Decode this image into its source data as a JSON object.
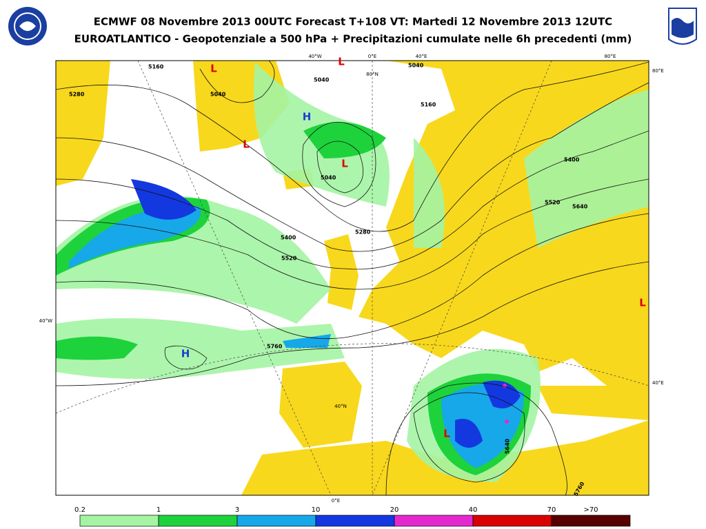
{
  "header": {
    "title_line1": "ECMWF 08 Novembre 2013 00UTC Forecast T+108 VT: Martedi 12 Novembre 2013 12UTC",
    "title_line2": "EUROATLANTICO - Geopotenziale a 500 hPa + Precipitazioni cumulate nelle 6h precedenti (mm)"
  },
  "map": {
    "graticule_labels": [
      "40°W",
      "0°E",
      "40°E",
      "80°E",
      "80°N",
      "80°E",
      "40°W",
      "40°E",
      "40°N",
      "0°E"
    ],
    "contour_labels": [
      "5280",
      "5160",
      "5040",
      "5040",
      "5040",
      "5160",
      "5040",
      "5280",
      "5400",
      "5520",
      "5400",
      "5520",
      "5640",
      "5760",
      "5640",
      "5760"
    ],
    "pressure_centers": [
      "L",
      "L",
      "L",
      "L",
      "L",
      "L",
      "H",
      "H"
    ]
  },
  "colorbar": {
    "labels": [
      "0.2",
      "1",
      "3",
      "10",
      "20",
      "40",
      "70",
      ">70"
    ],
    "colors": [
      "#a4f4a4",
      "#1ed23c",
      "#16a8e8",
      "#1438e0",
      "#e428d0",
      "#d80000",
      "#560000"
    ]
  }
}
